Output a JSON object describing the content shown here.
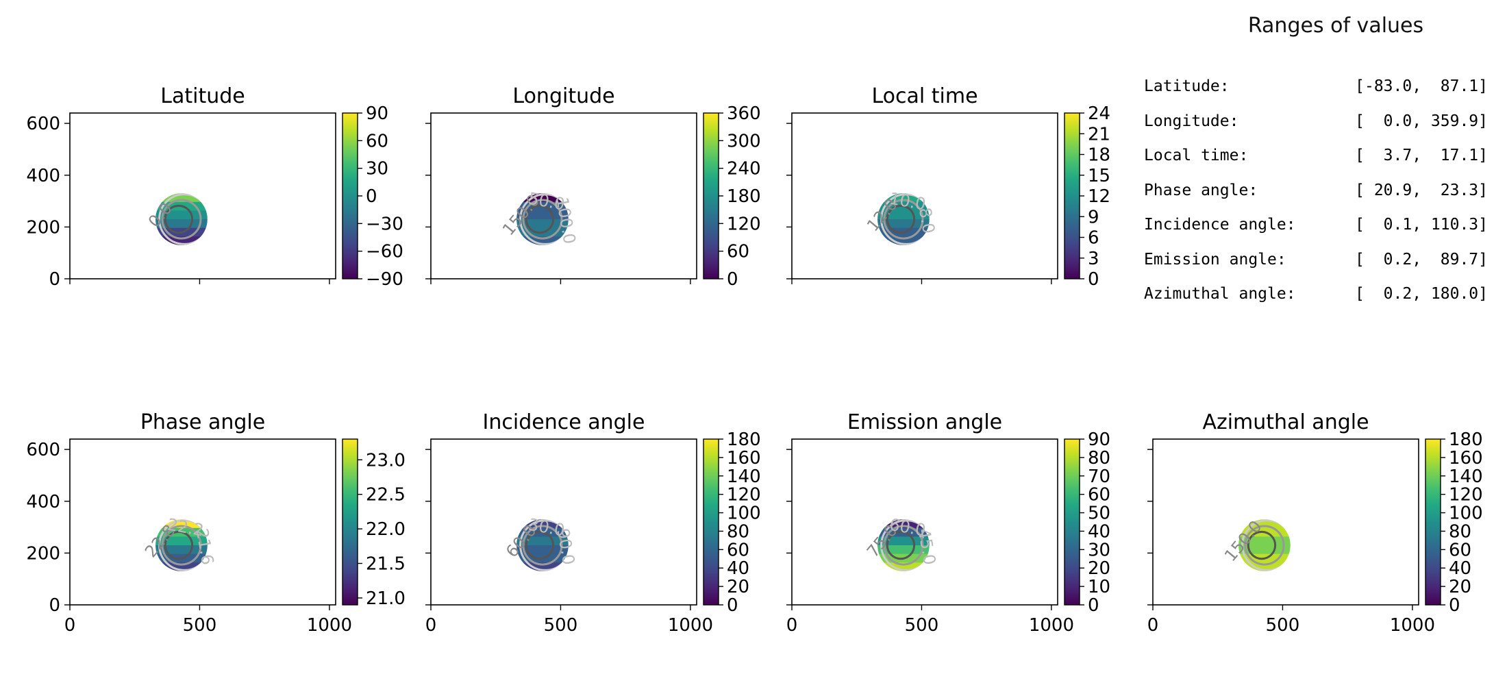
{
  "chart_data": [
    {
      "type": "heatmap",
      "title": "Latitude",
      "x_ticks": [],
      "y_ticks": [
        0,
        200,
        400,
        600
      ],
      "xlim": [
        0,
        1024
      ],
      "ylim": [
        0,
        640
      ],
      "colorbar": {
        "min": -90,
        "max": 90,
        "ticks": [
          "90",
          "60",
          "30",
          "0",
          "−30",
          "−60",
          "−90"
        ],
        "tick_values": [
          90,
          60,
          30,
          0,
          -30,
          -60,
          -90
        ]
      },
      "disk": {
        "center": [
          430,
          230
        ],
        "radius": 100
      },
      "contour_labels": [
        "0.0"
      ]
    },
    {
      "type": "heatmap",
      "title": "Longitude",
      "x_ticks": [],
      "y_ticks": [],
      "xlim": [
        0,
        1024
      ],
      "ylim": [
        0,
        640
      ],
      "colorbar": {
        "min": 0,
        "max": 360,
        "ticks": [
          "360",
          "300",
          "240",
          "180",
          "120",
          "60",
          "0"
        ],
        "tick_values": [
          360,
          300,
          240,
          180,
          120,
          60,
          0
        ]
      },
      "disk": {
        "center": [
          430,
          230
        ],
        "radius": 100
      },
      "contour_labels": [
        "150.0",
        "50.0",
        "100.0"
      ]
    },
    {
      "type": "heatmap",
      "title": "Local time",
      "x_ticks": [],
      "y_ticks": [],
      "xlim": [
        0,
        1024
      ],
      "ylim": [
        0,
        640
      ],
      "colorbar": {
        "min": 0,
        "max": 24,
        "ticks": [
          "24",
          "21",
          "18",
          "15",
          "12",
          "9",
          "6",
          "3",
          "0"
        ],
        "tick_values": [
          24,
          21,
          18,
          15,
          12,
          9,
          6,
          3,
          0
        ]
      },
      "disk": {
        "center": [
          430,
          230
        ],
        "radius": 100
      },
      "contour_labels": [
        "12.0",
        "10.0",
        "8.0"
      ]
    },
    {
      "type": "heatmap",
      "title": "Phase angle",
      "x_ticks": [
        0,
        500,
        1000
      ],
      "y_ticks": [
        0,
        200,
        400,
        600
      ],
      "xlim": [
        0,
        1024
      ],
      "ylim": [
        0,
        640
      ],
      "colorbar": {
        "min": 20.9,
        "max": 23.3,
        "ticks": [
          "23.0",
          "22.5",
          "22.0",
          "21.5",
          "21.0"
        ],
        "tick_values": [
          23.0,
          22.5,
          22.0,
          21.5,
          21.0
        ]
      },
      "disk": {
        "center": [
          430,
          230
        ],
        "radius": 100
      },
      "contour_labels": [
        "22.8",
        "22.2",
        "21.6"
      ]
    },
    {
      "type": "heatmap",
      "title": "Incidence angle",
      "x_ticks": [
        0,
        500,
        1000
      ],
      "y_ticks": [],
      "xlim": [
        0,
        1024
      ],
      "ylim": [
        0,
        640
      ],
      "colorbar": {
        "min": 0,
        "max": 180,
        "ticks": [
          "180",
          "160",
          "140",
          "120",
          "100",
          "80",
          "60",
          "40",
          "20",
          "0"
        ],
        "tick_values": [
          180,
          160,
          140,
          120,
          100,
          80,
          60,
          40,
          20,
          0
        ]
      },
      "disk": {
        "center": [
          430,
          230
        ],
        "radius": 100
      },
      "contour_labels": [
        "60.0",
        "30.0",
        "90.0"
      ]
    },
    {
      "type": "heatmap",
      "title": "Emission angle",
      "x_ticks": [
        0,
        500,
        1000
      ],
      "y_ticks": [],
      "xlim": [
        0,
        1024
      ],
      "ylim": [
        0,
        640
      ],
      "colorbar": {
        "min": 0,
        "max": 90,
        "ticks": [
          "90",
          "80",
          "70",
          "60",
          "50",
          "40",
          "30",
          "20",
          "10",
          "0"
        ],
        "tick_values": [
          90,
          80,
          70,
          60,
          50,
          40,
          30,
          20,
          10,
          0
        ]
      },
      "disk": {
        "center": [
          430,
          230
        ],
        "radius": 100
      },
      "contour_labels": [
        "75.0",
        "60.0",
        "45.0"
      ]
    },
    {
      "type": "heatmap",
      "title": "Azimuthal angle",
      "x_ticks": [
        0,
        500,
        1000
      ],
      "y_ticks": [],
      "xlim": [
        0,
        1024
      ],
      "ylim": [
        0,
        640
      ],
      "colorbar": {
        "min": 0,
        "max": 180,
        "ticks": [
          "180",
          "160",
          "140",
          "120",
          "100",
          "80",
          "60",
          "40",
          "20",
          "0"
        ],
        "tick_values": [
          180,
          160,
          140,
          120,
          100,
          80,
          60,
          40,
          20,
          0
        ]
      },
      "disk": {
        "center": [
          430,
          230
        ],
        "radius": 100
      },
      "contour_labels": [
        "150.0"
      ]
    }
  ],
  "ranges": {
    "title": "Ranges of values",
    "rows": [
      {
        "label": "Latitude:",
        "value": "[-83.0,  87.1]"
      },
      {
        "label": "Longitude:",
        "value": "[  0.0, 359.9]"
      },
      {
        "label": "Local time:",
        "value": "[  3.7,  17.1]"
      },
      {
        "label": "Phase angle:",
        "value": "[ 20.9,  23.3]"
      },
      {
        "label": "Incidence angle:",
        "value": "[  0.1, 110.3]"
      },
      {
        "label": "Emission angle:",
        "value": "[  0.2,  89.7]"
      },
      {
        "label": "Azimuthal angle:",
        "value": "[  0.2, 180.0]"
      }
    ]
  },
  "colors": {
    "viridis_low": "#440154",
    "viridis_mid": "#21918c",
    "viridis_high": "#fde725"
  }
}
